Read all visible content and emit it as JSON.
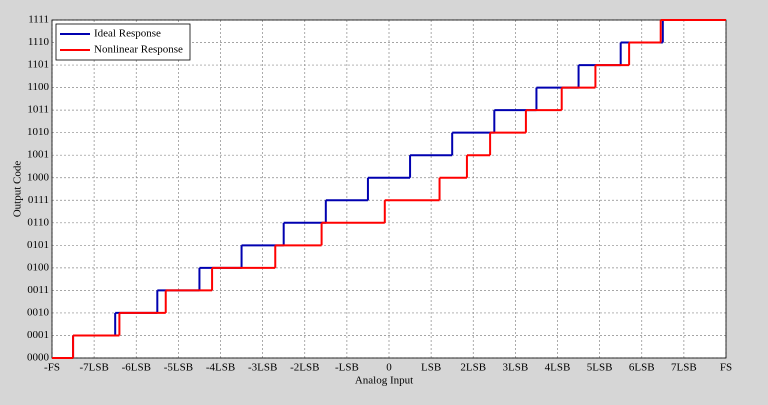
{
  "chart_data": {
    "type": "step",
    "xlabel": "Analog Input",
    "ylabel": "Output Code",
    "xlim": [
      -8,
      8
    ],
    "ylim": [
      0,
      15
    ],
    "xticks": [
      {
        "value": -8,
        "label": "-FS"
      },
      {
        "value": -7,
        "label": "-7LSB"
      },
      {
        "value": -6,
        "label": "-6LSB"
      },
      {
        "value": -5,
        "label": "-5LSB"
      },
      {
        "value": -4,
        "label": "-4LSB"
      },
      {
        "value": -3,
        "label": "-3LSB"
      },
      {
        "value": -2,
        "label": "-2LSB"
      },
      {
        "value": -1,
        "label": "-LSB"
      },
      0,
      {
        "value": 1,
        "label": "LSB"
      },
      {
        "value": 2,
        "label": "2LSB"
      },
      {
        "value": 3,
        "label": "3LSB"
      },
      {
        "value": 4,
        "label": "4LSB"
      },
      {
        "value": 5,
        "label": "5LSB"
      },
      {
        "value": 6,
        "label": "6LSB"
      },
      {
        "value": 7,
        "label": "7LSB"
      },
      {
        "value": 8,
        "label": "FS"
      }
    ],
    "yticks": [
      {
        "value": 0,
        "label": "0000"
      },
      {
        "value": 1,
        "label": "0001"
      },
      {
        "value": 2,
        "label": "0010"
      },
      {
        "value": 3,
        "label": "0011"
      },
      {
        "value": 4,
        "label": "0100"
      },
      {
        "value": 5,
        "label": "0101"
      },
      {
        "value": 6,
        "label": "0110"
      },
      {
        "value": 7,
        "label": "0111"
      },
      {
        "value": 8,
        "label": "1000"
      },
      {
        "value": 9,
        "label": "1001"
      },
      {
        "value": 10,
        "label": "1010"
      },
      {
        "value": 11,
        "label": "1011"
      },
      {
        "value": 12,
        "label": "1100"
      },
      {
        "value": 13,
        "label": "1101"
      },
      {
        "value": 14,
        "label": "1110"
      },
      {
        "value": 15,
        "label": "1111"
      }
    ],
    "grid": true,
    "legend": "upper left",
    "series": [
      {
        "name": "Ideal Response",
        "color": "#0000b0",
        "x": [
          -8,
          -7.5,
          -6.5,
          -5.5,
          -4.5,
          -3.5,
          -2.5,
          -1.5,
          -0.5,
          0.5,
          1.5,
          2.5,
          3.5,
          4.5,
          5.5,
          6.5
        ],
        "values": [
          0,
          1,
          2,
          3,
          4,
          5,
          6,
          7,
          8,
          9,
          10,
          11,
          12,
          13,
          14,
          15
        ]
      },
      {
        "name": "Nonlinear Response",
        "color": "#ff0000",
        "x": [
          -8,
          -7.5,
          -6.4,
          -5.3,
          -4.2,
          -2.7,
          -1.6,
          -0.1,
          1.2,
          1.85,
          2.4,
          3.25,
          4.1,
          4.9,
          5.7,
          6.45
        ],
        "values": [
          0,
          1,
          2,
          3,
          4,
          5,
          6,
          7,
          8,
          9,
          10,
          11,
          12,
          13,
          14,
          15
        ]
      }
    ]
  }
}
